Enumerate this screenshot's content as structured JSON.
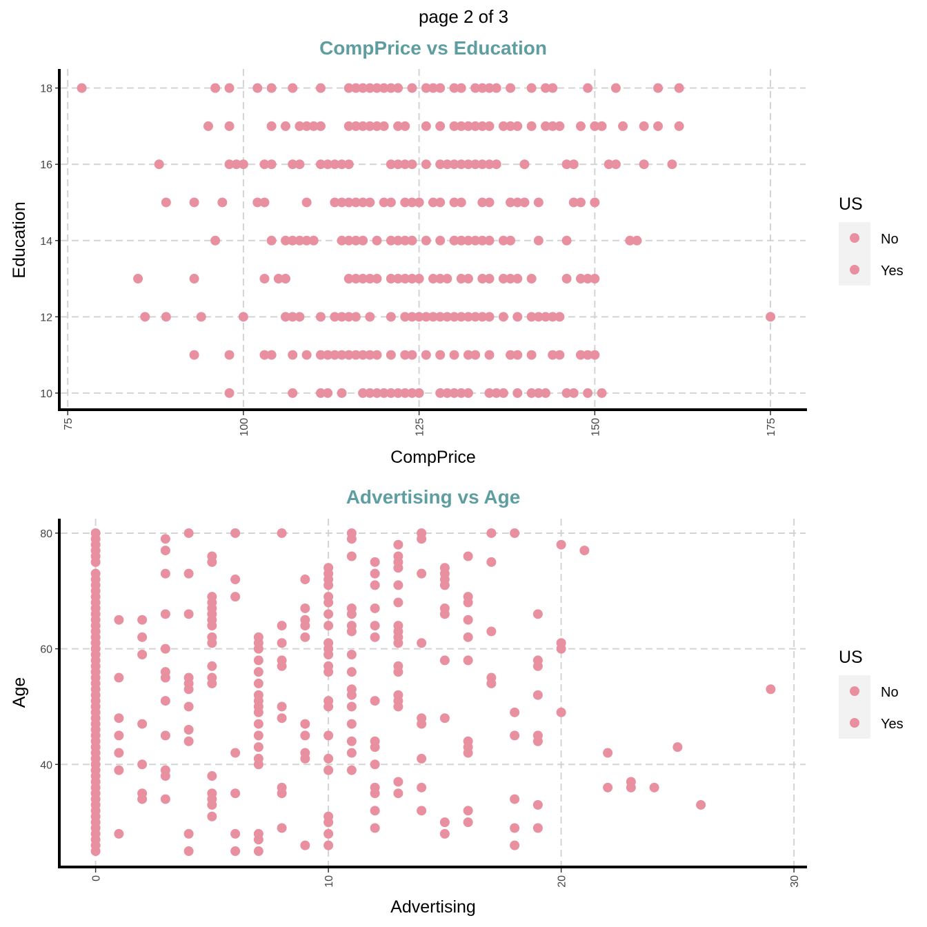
{
  "page_header": "page 2 of 3",
  "point_color": "#e8909f",
  "title_color": "#5f9ea0",
  "chart_data": [
    {
      "type": "scatter",
      "title": "CompPrice vs Education",
      "xlabel": "CompPrice",
      "ylabel": "Education",
      "xlim": [
        74,
        180
      ],
      "ylim": [
        9.6,
        18.5
      ],
      "xticks": [
        75,
        100,
        125,
        150,
        175
      ],
      "yticks": [
        10,
        12,
        14,
        16,
        18
      ],
      "grid": true,
      "legend": {
        "title": "US",
        "entries": [
          "No",
          "Yes"
        ],
        "position": "right"
      },
      "x": [
        77,
        96,
        98,
        102,
        104,
        107,
        111,
        115,
        116,
        117,
        118,
        119,
        120,
        121,
        122,
        124,
        126,
        127,
        128,
        130,
        131,
        133,
        134,
        135,
        136,
        138,
        141,
        143,
        144,
        149,
        153,
        159,
        162,
        95,
        98,
        104,
        106,
        108,
        109,
        110,
        111,
        115,
        116,
        117,
        118,
        119,
        120,
        122,
        123,
        126,
        128,
        130,
        131,
        132,
        133,
        134,
        135,
        137,
        138,
        139,
        141,
        143,
        144,
        145,
        148,
        150,
        151,
        154,
        157,
        159,
        162,
        88,
        98,
        99,
        100,
        103,
        104,
        107,
        108,
        111,
        112,
        113,
        114,
        115,
        121,
        122,
        123,
        124,
        126,
        128,
        129,
        130,
        131,
        132,
        133,
        134,
        135,
        136,
        140,
        146,
        147,
        152,
        153,
        157,
        161,
        89,
        93,
        97,
        102,
        103,
        109,
        113,
        114,
        115,
        116,
        117,
        118,
        120,
        121,
        123,
        124,
        125,
        127,
        128,
        130,
        131,
        134,
        135,
        138,
        139,
        140,
        142,
        147,
        148,
        150,
        96,
        104,
        106,
        107,
        108,
        109,
        110,
        114,
        115,
        116,
        117,
        119,
        121,
        122,
        123,
        124,
        126,
        128,
        130,
        131,
        132,
        133,
        134,
        135,
        137,
        138,
        142,
        146,
        155,
        156,
        85,
        93,
        103,
        105,
        106,
        115,
        116,
        117,
        118,
        119,
        121,
        122,
        123,
        124,
        125,
        127,
        128,
        129,
        131,
        132,
        134,
        135,
        137,
        138,
        139,
        141,
        146,
        148,
        149,
        150,
        86,
        89,
        94,
        100,
        106,
        107,
        108,
        111,
        113,
        114,
        115,
        116,
        118,
        121,
        123,
        124,
        125,
        126,
        127,
        128,
        129,
        130,
        131,
        132,
        133,
        134,
        135,
        137,
        139,
        141,
        142,
        143,
        144,
        145,
        175,
        93,
        98,
        103,
        104,
        107,
        109,
        111,
        112,
        113,
        114,
        115,
        116,
        117,
        118,
        119,
        121,
        123,
        124,
        126,
        128,
        130,
        132,
        133,
        135,
        138,
        139,
        141,
        144,
        145,
        148,
        149,
        150,
        98,
        107,
        111,
        112,
        114,
        117,
        118,
        119,
        120,
        121,
        122,
        123,
        124,
        125,
        128,
        129,
        130,
        131,
        132,
        135,
        136,
        137,
        139,
        141,
        142,
        143,
        146,
        147,
        149,
        151
      ],
      "y": [
        18,
        18,
        18,
        18,
        18,
        18,
        18,
        18,
        18,
        18,
        18,
        18,
        18,
        18,
        18,
        18,
        18,
        18,
        18,
        18,
        18,
        18,
        18,
        18,
        18,
        18,
        18,
        18,
        18,
        18,
        18,
        18,
        18,
        17,
        17,
        17,
        17,
        17,
        17,
        17,
        17,
        17,
        17,
        17,
        17,
        17,
        17,
        17,
        17,
        17,
        17,
        17,
        17,
        17,
        17,
        17,
        17,
        17,
        17,
        17,
        17,
        17,
        17,
        17,
        17,
        17,
        17,
        17,
        17,
        17,
        17,
        16,
        16,
        16,
        16,
        16,
        16,
        16,
        16,
        16,
        16,
        16,
        16,
        16,
        16,
        16,
        16,
        16,
        16,
        16,
        16,
        16,
        16,
        16,
        16,
        16,
        16,
        16,
        16,
        16,
        16,
        16,
        16,
        16,
        16,
        15,
        15,
        15,
        15,
        15,
        15,
        15,
        15,
        15,
        15,
        15,
        15,
        15,
        15,
        15,
        15,
        15,
        15,
        15,
        15,
        15,
        15,
        15,
        15,
        15,
        15,
        15,
        15,
        15,
        15,
        14,
        14,
        14,
        14,
        14,
        14,
        14,
        14,
        14,
        14,
        14,
        14,
        14,
        14,
        14,
        14,
        14,
        14,
        14,
        14,
        14,
        14,
        14,
        14,
        14,
        14,
        14,
        14,
        14,
        14,
        13,
        13,
        13,
        13,
        13,
        13,
        13,
        13,
        13,
        13,
        13,
        13,
        13,
        13,
        13,
        13,
        13,
        13,
        13,
        13,
        13,
        13,
        13,
        13,
        13,
        13,
        13,
        13,
        13,
        13,
        12,
        12,
        12,
        12,
        12,
        12,
        12,
        12,
        12,
        12,
        12,
        12,
        12,
        12,
        12,
        12,
        12,
        12,
        12,
        12,
        12,
        12,
        12,
        12,
        12,
        12,
        12,
        12,
        12,
        12,
        12,
        12,
        12,
        12,
        12,
        11,
        11,
        11,
        11,
        11,
        11,
        11,
        11,
        11,
        11,
        11,
        11,
        11,
        11,
        11,
        11,
        11,
        11,
        11,
        11,
        11,
        11,
        11,
        11,
        11,
        11,
        11,
        11,
        11,
        11,
        11,
        11,
        10,
        10,
        10,
        10,
        10,
        10,
        10,
        10,
        10,
        10,
        10,
        10,
        10,
        10,
        10,
        10,
        10,
        10,
        10,
        10,
        10,
        10,
        10,
        10,
        10,
        10,
        10,
        10,
        10,
        10
      ]
    },
    {
      "type": "scatter",
      "title": "Advertising vs Age",
      "xlabel": "Advertising",
      "ylabel": "Age",
      "xlim": [
        -1.5,
        30.5
      ],
      "ylim": [
        22.5,
        82.5
      ],
      "xticks": [
        0,
        10,
        20,
        30
      ],
      "yticks": [
        40,
        60,
        80
      ],
      "grid": true,
      "legend": {
        "title": "US",
        "entries": [
          "No",
          "Yes"
        ],
        "position": "right"
      },
      "x": [
        0,
        0,
        0,
        0,
        0,
        0,
        0,
        0,
        0,
        0,
        0,
        0,
        0,
        0,
        0,
        0,
        0,
        0,
        0,
        0,
        0,
        0,
        0,
        0,
        0,
        0,
        0,
        0,
        0,
        0,
        0,
        0,
        0,
        0,
        0,
        0,
        0,
        0,
        0,
        0,
        0,
        0,
        0,
        0,
        0,
        0,
        0,
        0,
        0,
        0,
        0,
        0,
        0,
        0,
        0,
        1,
        1,
        1,
        1,
        1,
        1,
        1,
        2,
        2,
        2,
        2,
        2,
        2,
        2,
        3,
        3,
        3,
        3,
        3,
        3,
        3,
        3,
        3,
        3,
        3,
        3,
        4,
        4,
        4,
        4,
        4,
        4,
        4,
        4,
        4,
        4,
        4,
        5,
        5,
        5,
        5,
        5,
        5,
        5,
        5,
        5,
        5,
        5,
        5,
        5,
        5,
        5,
        5,
        5,
        5,
        6,
        6,
        6,
        6,
        6,
        6,
        6,
        7,
        7,
        7,
        7,
        7,
        7,
        7,
        7,
        7,
        7,
        7,
        7,
        7,
        7,
        7,
        7,
        7,
        7,
        8,
        8,
        8,
        8,
        8,
        8,
        8,
        8,
        8,
        8,
        9,
        9,
        9,
        9,
        9,
        9,
        9,
        9,
        9,
        9,
        10,
        10,
        10,
        10,
        10,
        10,
        10,
        10,
        10,
        10,
        10,
        10,
        10,
        10,
        10,
        10,
        10,
        10,
        10,
        10,
        10,
        10,
        11,
        11,
        11,
        11,
        11,
        11,
        11,
        11,
        11,
        11,
        11,
        11,
        11,
        11,
        11,
        11,
        12,
        12,
        12,
        12,
        12,
        12,
        12,
        12,
        12,
        12,
        12,
        12,
        12,
        12,
        13,
        13,
        13,
        13,
        13,
        13,
        13,
        13,
        13,
        13,
        13,
        13,
        13,
        13,
        13,
        13,
        13,
        14,
        14,
        14,
        14,
        14,
        14,
        14,
        14,
        14,
        15,
        15,
        15,
        15,
        15,
        15,
        15,
        15,
        15,
        15,
        16,
        16,
        16,
        16,
        16,
        16,
        16,
        16,
        16,
        16,
        16,
        17,
        17,
        17,
        17,
        17,
        18,
        18,
        18,
        18,
        18,
        18,
        19,
        19,
        19,
        19,
        19,
        19,
        19,
        19,
        20,
        20,
        20,
        20,
        21,
        22,
        22,
        23,
        23,
        24,
        25,
        26,
        29
      ],
      "y": [
        80,
        79,
        78,
        77,
        76,
        75,
        73,
        72,
        71,
        70,
        69,
        68,
        65,
        64,
        63,
        62,
        61,
        60,
        59,
        58,
        57,
        56,
        55,
        54,
        53,
        52,
        51,
        50,
        49,
        48,
        46,
        45,
        44,
        43,
        42,
        41,
        39,
        38,
        37,
        36,
        34,
        33,
        32,
        31,
        30,
        29,
        28,
        27,
        26,
        25,
        35,
        40,
        47,
        67,
        66,
        65,
        55,
        48,
        45,
        42,
        39,
        28,
        65,
        62,
        59,
        47,
        40,
        35,
        34,
        79,
        77,
        73,
        66,
        60,
        56,
        55,
        51,
        45,
        39,
        38,
        34,
        80,
        73,
        66,
        55,
        54,
        53,
        50,
        46,
        44,
        28,
        25,
        76,
        75,
        69,
        67,
        66,
        64,
        62,
        61,
        57,
        55,
        54,
        38,
        35,
        34,
        33,
        31,
        68,
        65,
        80,
        72,
        69,
        42,
        35,
        28,
        25,
        62,
        61,
        60,
        56,
        54,
        52,
        51,
        50,
        47,
        45,
        43,
        41,
        40,
        28,
        27,
        25,
        49,
        58,
        80,
        64,
        61,
        58,
        57,
        50,
        48,
        36,
        35,
        29,
        72,
        67,
        65,
        64,
        62,
        47,
        45,
        42,
        41,
        26,
        74,
        73,
        72,
        71,
        69,
        68,
        64,
        61,
        60,
        59,
        57,
        56,
        51,
        50,
        45,
        41,
        39,
        31,
        30,
        28,
        26,
        66,
        80,
        79,
        76,
        67,
        66,
        64,
        63,
        59,
        56,
        53,
        52,
        50,
        47,
        44,
        42,
        39,
        75,
        73,
        71,
        67,
        64,
        62,
        51,
        44,
        43,
        40,
        36,
        35,
        32,
        29,
        78,
        76,
        75,
        74,
        71,
        68,
        64,
        63,
        62,
        61,
        57,
        56,
        52,
        51,
        50,
        37,
        35,
        80,
        79,
        73,
        61,
        48,
        47,
        41,
        36,
        32,
        74,
        73,
        72,
        71,
        67,
        66,
        58,
        48,
        30,
        28,
        76,
        69,
        68,
        65,
        62,
        58,
        44,
        43,
        42,
        30,
        32,
        80,
        75,
        63,
        55,
        54,
        80,
        49,
        45,
        34,
        29,
        26,
        66,
        58,
        57,
        52,
        45,
        44,
        33,
        29,
        78,
        61,
        60,
        49,
        77,
        42,
        36,
        37,
        36,
        36,
        43,
        33,
        53
      ]
    }
  ]
}
